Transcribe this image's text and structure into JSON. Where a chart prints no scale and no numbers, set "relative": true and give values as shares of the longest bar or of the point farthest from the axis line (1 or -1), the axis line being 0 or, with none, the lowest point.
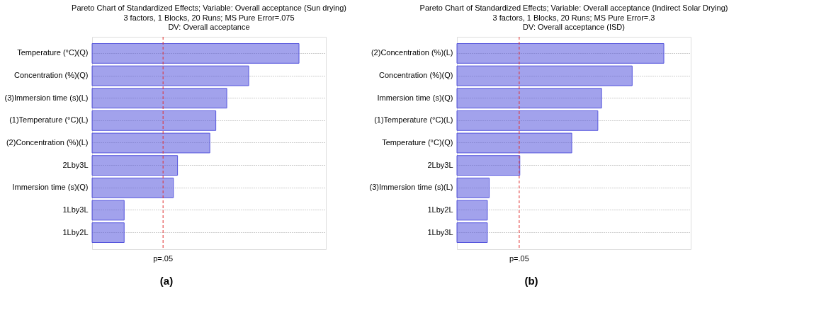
{
  "chart_data": [
    {
      "type": "bar",
      "orientation": "horizontal",
      "relative": true,
      "title": "Pareto Chart of Standardized Effects; Variable: Overall acceptance (Sun drying)",
      "subtitle": "3 factors, 1 Blocks, 20 Runs; MS Pure Error=.075\nDV: Overall acceptance",
      "categories": [
        "Temperature (°C)(Q)",
        "Concentration (%)(Q)",
        "(3)Immersion time (s)(L)",
        "(1)Temperature (°C)(L)",
        "(2)Concentration (%)(L)",
        "2Lby3L",
        "Immersion time (s)(Q)",
        "1Lby3L",
        "1Lby2L"
      ],
      "values": [
        1,
        0.757,
        0.651,
        0.598,
        0.569,
        0.413,
        0.393,
        0.155,
        0.155
      ],
      "color": "#5555dd",
      "ref_lines": [
        {
          "axis": "x",
          "value": 0.343,
          "label": "p=.05",
          "color": "#e03030",
          "line_style": "dashed"
        }
      ],
      "grid": "y",
      "tick_labels": "y",
      "annotations": [
        "(a)"
      ]
    },
    {
      "type": "bar",
      "orientation": "horizontal",
      "relative": true,
      "title": "Pareto Chart of Standardized Effects; Variable: Overall acceptance (Indirect Solar Drying)",
      "subtitle": "3 factors, 1 Blocks, 20 Runs; MS Pure Error=.3\nDV: Overall acceptance (ISD)",
      "categories": [
        "(2)Concentration (%)(L)",
        "Concentration (%)(Q)",
        "Immersion time (s)(Q)",
        "(1)Temperature (°C)(L)",
        "Temperature (°C)(Q)",
        "2Lby3L",
        "(3)Immersion time (s)(L)",
        "1Lby2L",
        "1Lby3L"
      ],
      "values": [
        1,
        0.847,
        0.699,
        0.681,
        0.555,
        0.304,
        0.156,
        0.147,
        0.147
      ],
      "color": "#5555dd",
      "ref_lines": [
        {
          "axis": "x",
          "value": 0.301,
          "label": "p=.05",
          "color": "#e03030",
          "line_style": "dashed"
        }
      ],
      "grid": "y",
      "tick_labels": "y",
      "annotations": [
        "(b)"
      ]
    }
  ]
}
